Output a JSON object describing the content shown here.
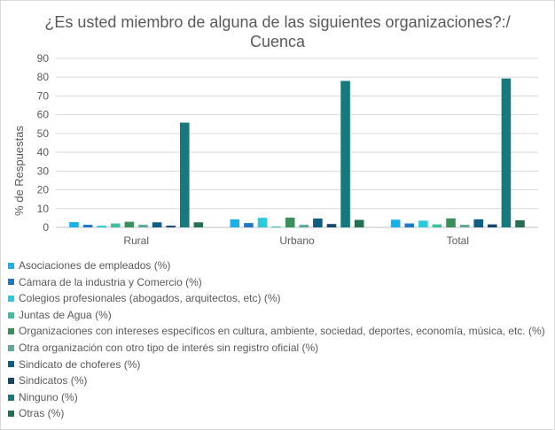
{
  "chart_data": {
    "type": "bar",
    "title": "¿Es usted miembro de alguna de las siguientes organizaciones?:/",
    "subtitle": "Cuenca",
    "ylabel": "% de Respuestas",
    "xlabel": "",
    "ylim": [
      0,
      90
    ],
    "yticks": [
      "0",
      "10",
      "20",
      "30",
      "40",
      "50",
      "60",
      "70",
      "80",
      "90"
    ],
    "grid": true,
    "legend_position": "bottom",
    "categories": [
      "Rural",
      "Urbano",
      "Total"
    ],
    "series": [
      {
        "name": "Asociaciones de empleados (%)",
        "color": "#1ab2e6",
        "values": [
          2.8,
          4.3,
          4.1
        ]
      },
      {
        "name": "Cámara de la industria y Comercio (%)",
        "color": "#1f78c1",
        "values": [
          1.4,
          2.3,
          2.1
        ]
      },
      {
        "name": "Colegios profesionales (abogados, arquitectos, etc) (%)",
        "color": "#2bcad8",
        "values": [
          0.9,
          5.1,
          3.6
        ]
      },
      {
        "name": "Juntas de Agua (%)",
        "color": "#3ec0a0",
        "values": [
          2.1,
          0.5,
          1.6
        ]
      },
      {
        "name": "Organizaciones con intereses específicos en cultura, ambiente, sociedad, deportes, economía, música, etc. (%)",
        "color": "#3a8f5a",
        "values": [
          3.0,
          5.2,
          4.8
        ]
      },
      {
        "name": "Otra organización con otro tipo de interés sin registro oficial (%)",
        "color": "#5fa89a",
        "values": [
          1.4,
          1.4,
          1.4
        ]
      },
      {
        "name": "Sindicato de choferes (%)",
        "color": "#0e5d82",
        "values": [
          2.7,
          4.7,
          4.3
        ]
      },
      {
        "name": "Sindicatos (%)",
        "color": "#14486b",
        "values": [
          0.9,
          1.8,
          1.6
        ]
      },
      {
        "name": "Ninguno (%)",
        "color": "#167a7c",
        "values": [
          55.8,
          78.0,
          79.3
        ]
      },
      {
        "name": "Otras (%)",
        "color": "#256f52",
        "values": [
          2.7,
          4.0,
          3.8
        ]
      }
    ]
  }
}
